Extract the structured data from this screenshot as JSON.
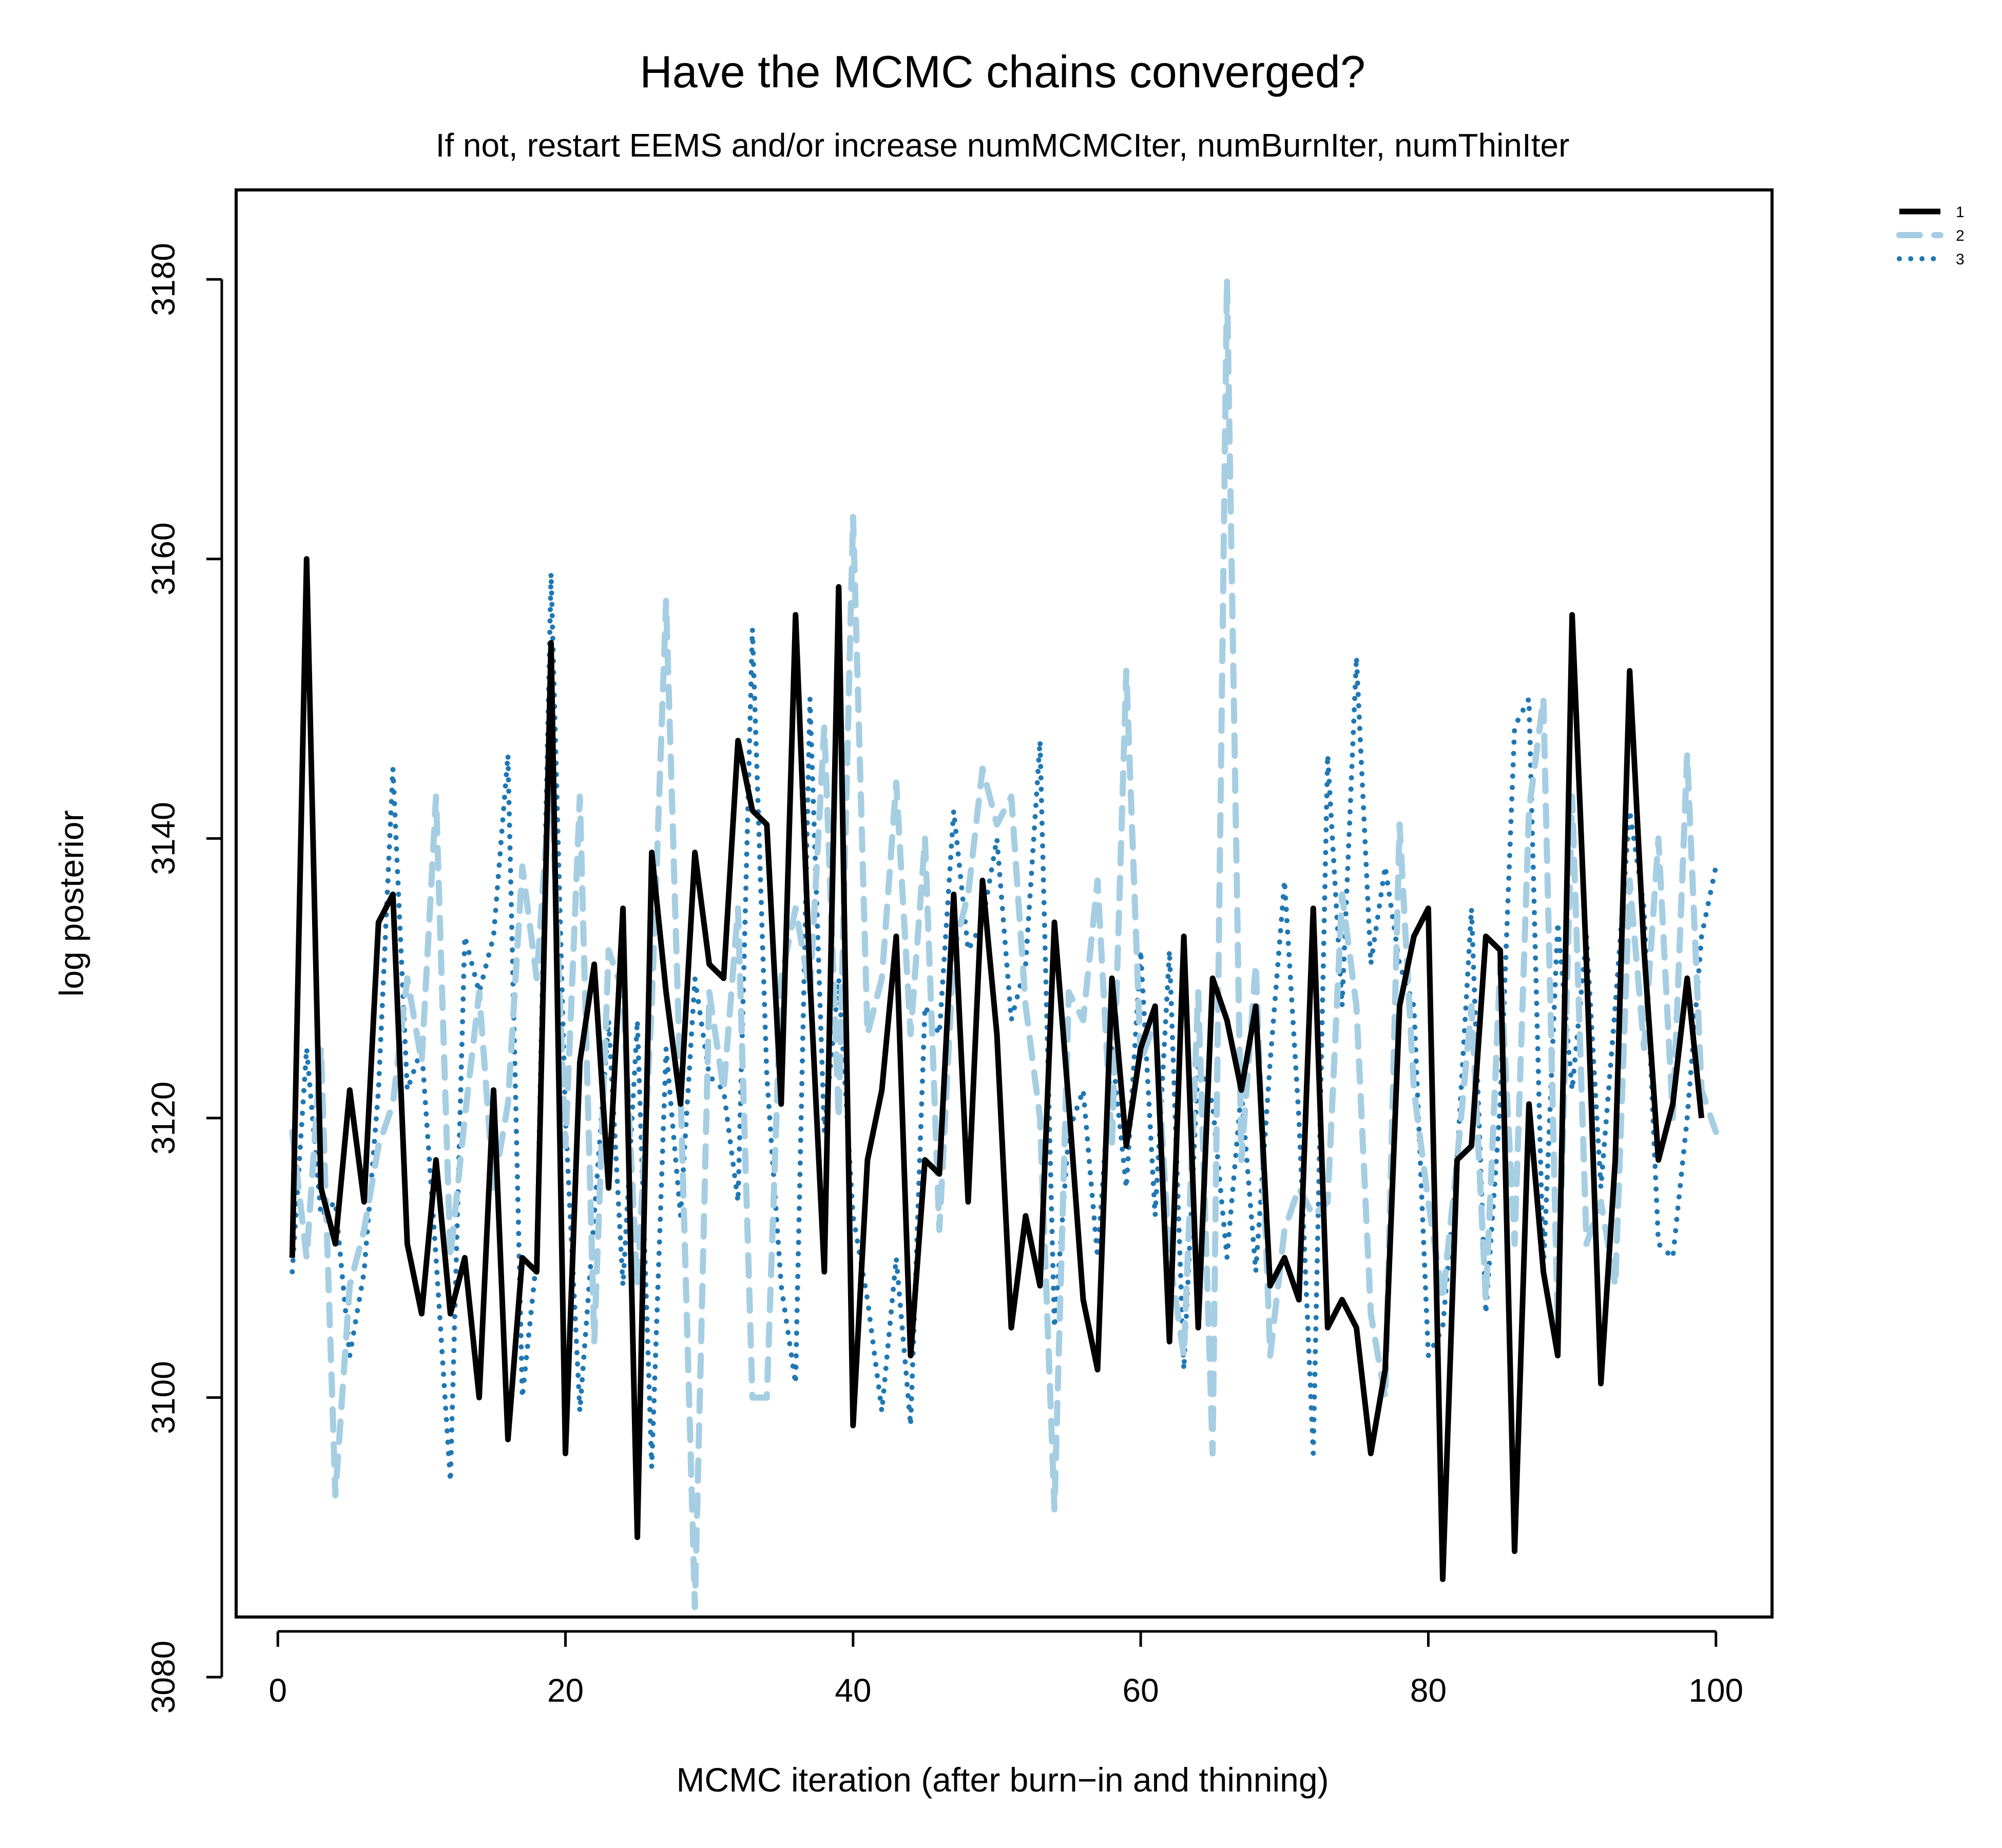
{
  "chart_data": {
    "type": "line",
    "title": "Have the MCMC chains converged?",
    "subtitle": "If not, restart EEMS and/or increase numMCMCIter, numBurnIter, numThinIter",
    "xlabel": "MCMC iteration  (after burn−in and thinning)",
    "ylabel": "log posterior",
    "xlim": [
      -2.9,
      103.9
    ],
    "ylim": [
      3084.3,
      3186.4
    ],
    "x_ticks": [
      0,
      20,
      40,
      60,
      80,
      100
    ],
    "y_ticks": [
      3080,
      3100,
      3120,
      3140,
      3160,
      3180
    ],
    "x_tick_labels": [
      "0",
      "20",
      "40",
      "60",
      "80",
      "100"
    ],
    "y_tick_labels": [
      "3080",
      "3100",
      "3120",
      "3140",
      "3160",
      "3180"
    ],
    "grid": false,
    "legend_position": "top-right, outside plot",
    "x_start": 1,
    "series": [
      {
        "name": "1",
        "color": "#000000",
        "line_style": "solid",
        "values": [
          3110,
          3160,
          3115,
          3111,
          3122,
          3114,
          3134,
          3136,
          3111,
          3106,
          3117,
          3106,
          3110,
          3100,
          3122,
          3097,
          3110,
          3109,
          3154,
          3096,
          3124,
          3131,
          3115,
          3135,
          3090,
          3139,
          3129,
          3121,
          3139,
          3131,
          3130,
          3147,
          3142,
          3141,
          3121,
          3156,
          3130,
          3109,
          3158,
          3098,
          3117,
          3122,
          3133,
          3103,
          3117,
          3116,
          3136,
          3114,
          3137,
          3126,
          3105,
          3113,
          3108,
          3134,
          3121,
          3107,
          3102,
          3130,
          3118,
          3125,
          3128,
          3104,
          3133,
          3105,
          3130,
          3127,
          3122,
          3128,
          3108,
          3110,
          3107,
          3135,
          3105,
          3107,
          3105,
          3096,
          3102,
          3128,
          3133,
          3135,
          3087,
          3117,
          3118,
          3133,
          3132,
          3089,
          3121,
          3109,
          3103,
          3156,
          3131,
          3101,
          3117,
          3152,
          3132,
          3117,
          3121,
          3130,
          3120
        ]
      },
      {
        "name": "2",
        "color": "#a6cee3",
        "line_style": "dashed",
        "values": [
          3119,
          3110,
          3125,
          3093,
          3108,
          3112,
          3118,
          3121,
          3130,
          3124,
          3143,
          3110,
          3120,
          3129,
          3115,
          3121,
          3138,
          3130,
          3145,
          3118,
          3143,
          3104,
          3132,
          3129,
          3108,
          3128,
          3157,
          3122,
          3085,
          3129,
          3122,
          3135,
          3100,
          3100,
          3130,
          3135,
          3129,
          3148,
          3120,
          3163,
          3126,
          3130,
          3144,
          3126,
          3140,
          3112,
          3132,
          3136,
          3145,
          3141,
          3143,
          3128,
          3120,
          3092,
          3129,
          3127,
          3137,
          3118,
          3152,
          3124,
          3127,
          3110,
          3103,
          3129,
          3096,
          3180,
          3117,
          3131,
          3103,
          3112,
          3115,
          3113,
          3114,
          3136,
          3128,
          3106,
          3100,
          3141,
          3122,
          3114,
          3107,
          3117,
          3128,
          3107,
          3131,
          3111,
          3142,
          3150,
          3105,
          3143,
          3111,
          3114,
          3108,
          3137,
          3125,
          3140,
          3120,
          3146,
          3122,
          3119
        ]
      },
      {
        "name": "3",
        "color": "#1f78b4",
        "line_style": "dotted",
        "values": [
          3109,
          3125,
          3113,
          3114,
          3103,
          3109,
          3122,
          3145,
          3122,
          3125,
          3110,
          3094,
          3133,
          3129,
          3133,
          3146,
          3100,
          3110,
          3159,
          3120,
          3099,
          3113,
          3127,
          3108,
          3127,
          3095,
          3125,
          3113,
          3130,
          3123,
          3122,
          3114,
          3155,
          3123,
          3108,
          3101,
          3150,
          3119,
          3130,
          3113,
          3107,
          3099,
          3110,
          3098,
          3128,
          3126,
          3142,
          3132,
          3134,
          3140,
          3127,
          3131,
          3147,
          3105,
          3119,
          3122,
          3110,
          3125,
          3115,
          3132,
          3113,
          3132,
          3102,
          3124,
          3121,
          3110,
          3122,
          3109,
          3124,
          3137,
          3120,
          3096,
          3146,
          3128,
          3153,
          3131,
          3138,
          3131,
          3128,
          3103,
          3105,
          3117,
          3135,
          3106,
          3121,
          3148,
          3150,
          3109,
          3134,
          3122,
          3133,
          3115,
          3128,
          3142,
          3135,
          3111,
          3110,
          3120,
          3133,
          3138
        ]
      }
    ]
  }
}
